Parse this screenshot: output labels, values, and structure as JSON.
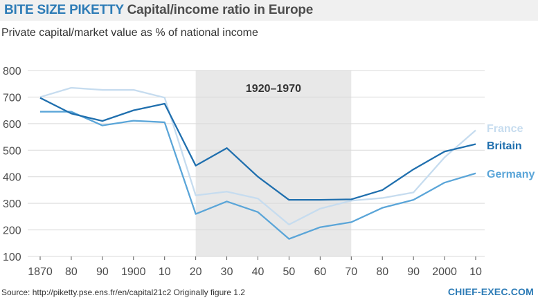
{
  "header": {
    "brand": "BITE SIZE PIKETTY",
    "title": "Capital/income ratio in Europe"
  },
  "subtitle": "Private capital/market value as % of national income",
  "footer": {
    "source": "Source: http://piketty.pse.ens.fr/en/capital21c2   Originally figure 1.2",
    "logo": "CHIEF-EXEC.COM"
  },
  "colors": {
    "France": "#c6dcef",
    "Britain": "#1f6fae",
    "Germany": "#5aa5d8",
    "shade": "#e8e8e8",
    "grid": "#d9d9d9",
    "brand": "#2c7bb6"
  },
  "chart_data": {
    "type": "line",
    "title": "Capital/income ratio in Europe",
    "ylabel": "Private capital/market value as % of national income",
    "xlabel": "",
    "ylim": [
      100,
      800
    ],
    "yticks": [
      100,
      200,
      300,
      400,
      500,
      600,
      700,
      800
    ],
    "x": [
      1870,
      1880,
      1890,
      1900,
      1910,
      1920,
      1930,
      1940,
      1950,
      1960,
      1970,
      1980,
      1990,
      2000,
      2010
    ],
    "xtick_labels": [
      "1870",
      "80",
      "90",
      "1900",
      "10",
      "20",
      "30",
      "40",
      "50",
      "60",
      "70",
      "80",
      "90",
      "2000",
      "10"
    ],
    "shaded_region": {
      "from": 1920,
      "to": 1970,
      "label": "1920–1970"
    },
    "series": [
      {
        "name": "France",
        "values": [
          700,
          735,
          727,
          727,
          698,
          330,
          344,
          318,
          220,
          280,
          310,
          320,
          341,
          473,
          575
        ]
      },
      {
        "name": "Britain",
        "values": [
          697,
          638,
          610,
          650,
          675,
          442,
          508,
          400,
          313,
          313,
          315,
          350,
          428,
          495,
          523
        ]
      },
      {
        "name": "Germany",
        "values": [
          645,
          645,
          593,
          611,
          605,
          260,
          307,
          267,
          166,
          210,
          229,
          283,
          313,
          378,
          413
        ]
      }
    ]
  }
}
